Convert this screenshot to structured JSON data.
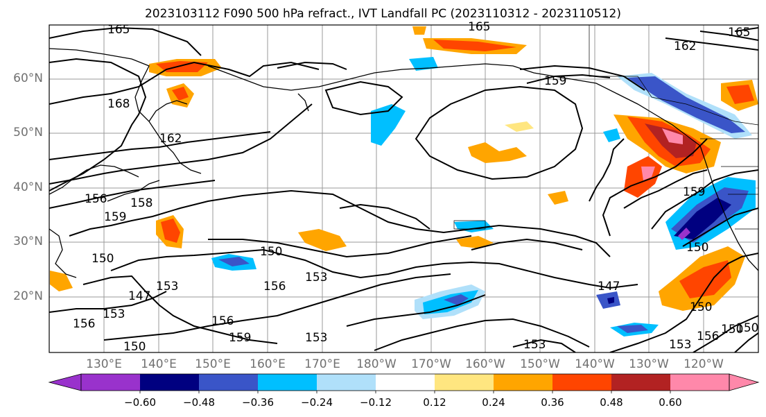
{
  "title": "2023103112 F090 500 hPa refract., IVT Landfall PC (2023110312 - 2023110512)",
  "lat_labels": [
    "60°N",
    "50°N",
    "40°N",
    "30°N",
    "20°N"
  ],
  "lon_labels": [
    "130°E",
    "140°E",
    "150°E",
    "160°E",
    "170°E",
    "180°W",
    "170°W",
    "160°W",
    "150°W",
    "140°W",
    "130°W",
    "120°W"
  ],
  "colorbar": {
    "ticks": [
      "−0.60",
      "−0.48",
      "−0.36",
      "−0.24",
      "−0.12",
      "0.12",
      "0.24",
      "0.36",
      "0.48",
      "0.60"
    ],
    "colors": [
      "#9932CC",
      "#000080",
      "#3A55C8",
      "#00BFFF",
      "#B0E0FA",
      "#FFFFFF",
      "#FFE680",
      "#FFA500",
      "#FF4500",
      "#B22222",
      "#FF88AA"
    ]
  },
  "contour_labels": [
    "165",
    "165",
    "162",
    "165",
    "159",
    "168",
    "162",
    "156",
    "159",
    "158",
    "150",
    "147",
    "153",
    "156",
    "150",
    "156",
    "153",
    "156",
    "159",
    "150",
    "153",
    "150",
    "147",
    "159",
    "150",
    "153",
    "156",
    "150",
    "150",
    "153",
    "153"
  ]
}
